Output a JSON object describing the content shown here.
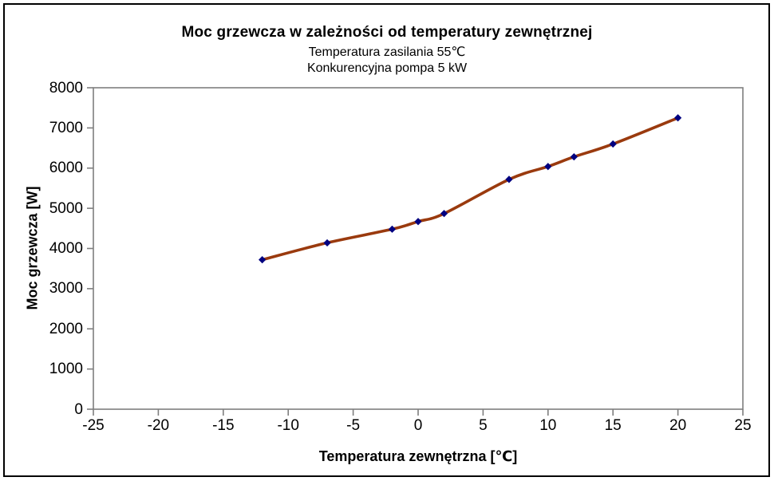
{
  "chart_data": {
    "type": "line",
    "title": "Moc grzewcza w zależności od temperatury zewnętrznej",
    "subtitle_lines": [
      "Temperatura zasilania 55℃",
      "Konkurencyjna pompa 5 kW"
    ],
    "xlabel": "Temperatura zewnętrzna [℃]",
    "ylabel": "Moc grzewcza [W]",
    "x": [
      -12,
      -7,
      -2,
      0,
      2,
      7,
      10,
      12,
      15,
      20
    ],
    "y": [
      3720,
      4140,
      4480,
      4670,
      4870,
      5720,
      6040,
      6280,
      6600,
      7250
    ],
    "xlim": [
      -25,
      25
    ],
    "ylim": [
      0,
      8000
    ],
    "xticks": [
      -25,
      -20,
      -15,
      -10,
      -5,
      0,
      5,
      10,
      15,
      20,
      25
    ],
    "yticks": [
      0,
      1000,
      2000,
      3000,
      4000,
      5000,
      6000,
      7000,
      8000
    ],
    "grid": false,
    "legend": false,
    "line_smooth": true,
    "line_color": "#9a3a0e",
    "marker": "diamond",
    "marker_color": "#000080",
    "axis_color": "#7f7f7f",
    "frame_color": "#000000",
    "background_color": "#ffffff"
  }
}
